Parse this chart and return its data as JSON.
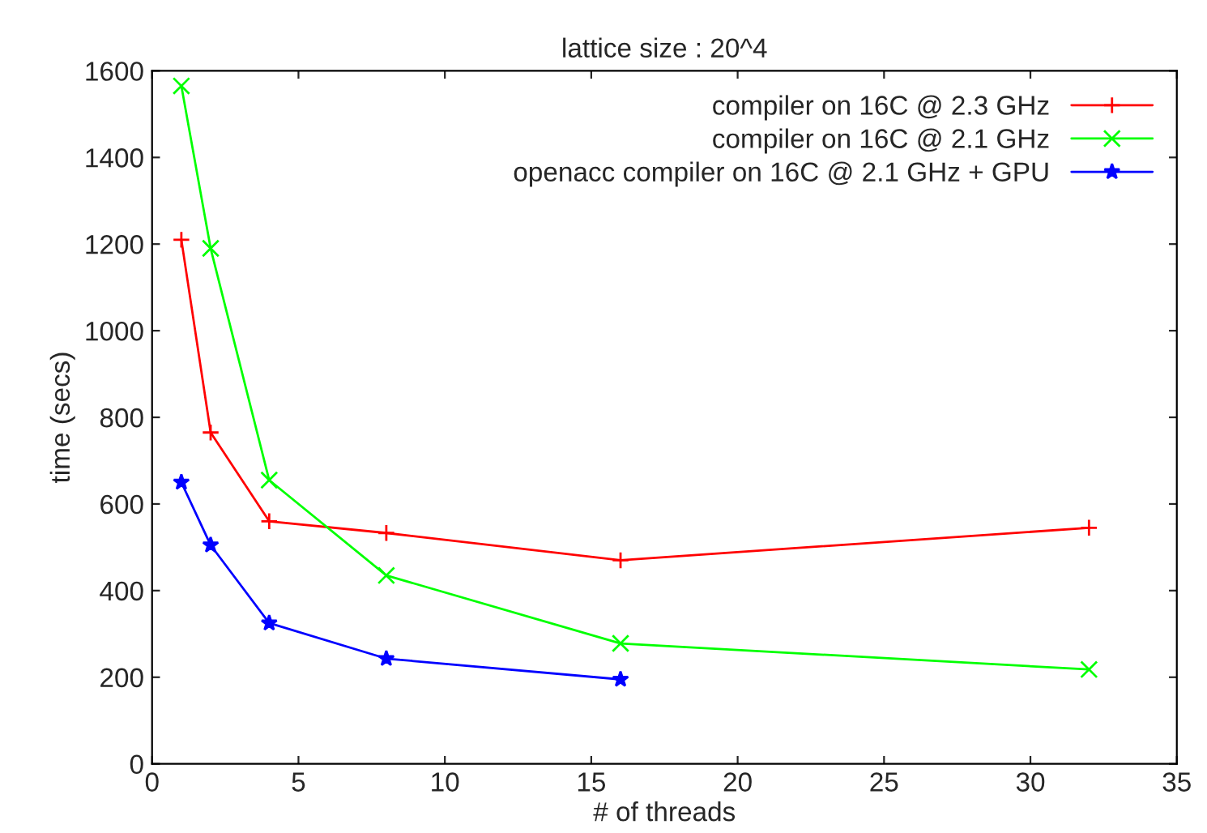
{
  "chart_data": {
    "type": "line",
    "title": "lattice size : 20^4",
    "xlabel": "# of threads",
    "ylabel": "time (secs)",
    "x": [
      1,
      2,
      4,
      8,
      16,
      32
    ],
    "series": [
      {
        "name": "compiler on 16C @ 2.3 GHz",
        "color": "#ff0000",
        "marker": "cross",
        "values": [
          1210,
          765,
          560,
          533,
          470,
          545
        ]
      },
      {
        "name": "compiler on 16C @ 2.1 GHz",
        "color": "#00ff00",
        "marker": "x",
        "values": [
          1565,
          1190,
          655,
          435,
          278,
          218
        ]
      },
      {
        "name": "openacc compiler on 16C @ 2.1 GHz + GPU",
        "color": "#0000ff",
        "marker": "star",
        "values": [
          650,
          505,
          325,
          243,
          195,
          null
        ]
      }
    ],
    "xlim": [
      0,
      35
    ],
    "xticks": [
      0,
      5,
      10,
      15,
      20,
      25,
      30,
      35
    ],
    "ylim": [
      0,
      1600
    ],
    "yticks": [
      0,
      200,
      400,
      600,
      800,
      1000,
      1200,
      1400,
      1600
    ],
    "grid": false,
    "legend": "top right",
    "line_style": "solid"
  }
}
